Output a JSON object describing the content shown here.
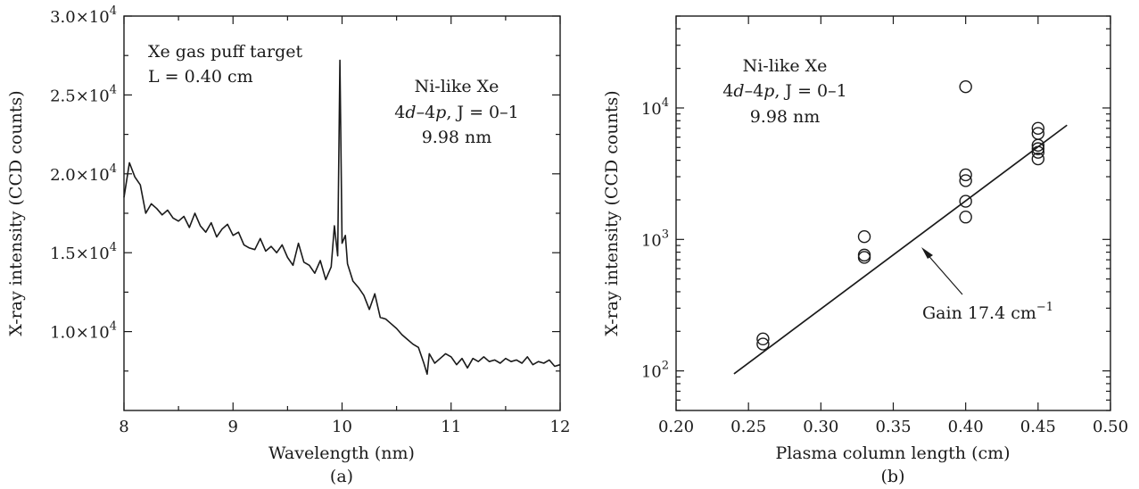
{
  "chart_data": [
    {
      "type": "line",
      "panel_label": "(a)",
      "xlabel": "Wavelength (nm)",
      "ylabel": "X-ray intensity (CCD counts)",
      "xlim": [
        8,
        12
      ],
      "ylim": [
        5000,
        30000
      ],
      "x_ticks": [
        8,
        9,
        10,
        11,
        12
      ],
      "x_tick_labels": [
        "8",
        "9",
        "10",
        "11",
        "12"
      ],
      "y_ticks": [
        10000,
        15000,
        20000,
        25000,
        30000
      ],
      "y_tick_mantissas": [
        "1.0",
        "1.5",
        "2.0",
        "2.5",
        "3.0"
      ],
      "y_tick_times": "×10",
      "y_tick_exponent": "4",
      "annotations": {
        "target_line1": "Xe gas puff target",
        "target_line2": "L = 0.40 cm",
        "ion": "Ni-like Xe",
        "transition_a": "4",
        "transition_b": "d",
        "transition_c": "–4",
        "transition_d": "p",
        "transition_e": ", J = 0–1",
        "wavelength": "9.98 nm"
      },
      "series": [
        {
          "x": [
            8.0,
            8.05,
            8.1,
            8.15,
            8.2,
            8.25,
            8.3,
            8.35,
            8.4,
            8.45,
            8.5,
            8.55,
            8.6,
            8.65,
            8.7,
            8.75,
            8.8,
            8.85,
            8.9,
            8.95,
            9.0,
            9.05,
            9.1,
            9.15,
            9.2,
            9.25,
            9.3,
            9.35,
            9.4,
            9.45,
            9.5,
            9.55,
            9.6,
            9.65,
            9.7,
            9.75,
            9.8,
            9.85,
            9.9,
            9.93,
            9.96,
            9.98,
            10.0,
            10.03,
            10.05,
            10.1,
            10.15,
            10.2,
            10.25,
            10.3,
            10.35,
            10.4,
            10.45,
            10.5,
            10.55,
            10.6,
            10.65,
            10.7,
            10.75,
            10.78,
            10.8,
            10.85,
            10.9,
            10.95,
            11.0,
            11.05,
            11.1,
            11.15,
            11.2,
            11.25,
            11.3,
            11.35,
            11.4,
            11.45,
            11.5,
            11.55,
            11.6,
            11.65,
            11.7,
            11.75,
            11.8,
            11.85,
            11.9,
            11.95,
            12.0
          ],
          "y": [
            18500,
            20700,
            19800,
            19300,
            17500,
            18100,
            17800,
            17400,
            17700,
            17200,
            17000,
            17300,
            16600,
            17500,
            16700,
            16300,
            16900,
            16000,
            16500,
            16800,
            16100,
            16300,
            15500,
            15300,
            15200,
            15900,
            15100,
            15400,
            15000,
            15500,
            14700,
            14200,
            15600,
            14400,
            14200,
            13700,
            14500,
            13300,
            14100,
            16700,
            14800,
            27200,
            15600,
            16100,
            14300,
            13200,
            12800,
            12300,
            11400,
            12400,
            10900,
            10800,
            10500,
            10200,
            9800,
            9500,
            9200,
            9000,
            8000,
            7300,
            8600,
            8000,
            8300,
            8600,
            8400,
            7900,
            8300,
            7700,
            8300,
            8100,
            8400,
            8100,
            8200,
            8000,
            8300,
            8100,
            8200,
            8000,
            8400,
            7900,
            8100,
            8000,
            8200,
            7800,
            7900
          ]
        }
      ]
    },
    {
      "type": "scatter",
      "panel_label": "(b)",
      "xlabel": "Plasma column length (cm)",
      "ylabel": "X-ray intensity (CCD counts)",
      "xlim": [
        0.2,
        0.5
      ],
      "ylim": [
        50,
        50000
      ],
      "yscale": "log",
      "x_ticks": [
        0.2,
        0.25,
        0.3,
        0.35,
        0.4,
        0.45,
        0.5
      ],
      "x_tick_labels": [
        "0.20",
        "0.25",
        "0.30",
        "0.35",
        "0.40",
        "0.45",
        "0.50"
      ],
      "y_ticks": [
        100,
        1000,
        10000
      ],
      "y_tick_base": "10",
      "y_tick_exponents": [
        "2",
        "3",
        "4"
      ],
      "annotations": {
        "ion": "Ni-like Xe",
        "transition_a": "4",
        "transition_b": "d",
        "transition_c": "–4",
        "transition_d": "p",
        "transition_e": ", J = 0–1",
        "wavelength": "9.98 nm",
        "gain_text": "Gain 17.4 cm",
        "gain_exponent": "−1"
      },
      "series": [
        {
          "x": [
            0.26,
            0.26,
            0.33,
            0.33,
            0.33,
            0.4,
            0.4,
            0.4,
            0.4,
            0.4,
            0.45,
            0.45,
            0.45,
            0.45,
            0.45,
            0.45
          ],
          "y": [
            175,
            160,
            1050,
            760,
            730,
            14500,
            3100,
            2800,
            1950,
            1480,
            7000,
            6400,
            5200,
            4900,
            4600,
            4100
          ]
        }
      ],
      "fit_line": {
        "x": [
          0.24,
          0.47
        ],
        "y": [
          95,
          7400
        ]
      }
    }
  ]
}
